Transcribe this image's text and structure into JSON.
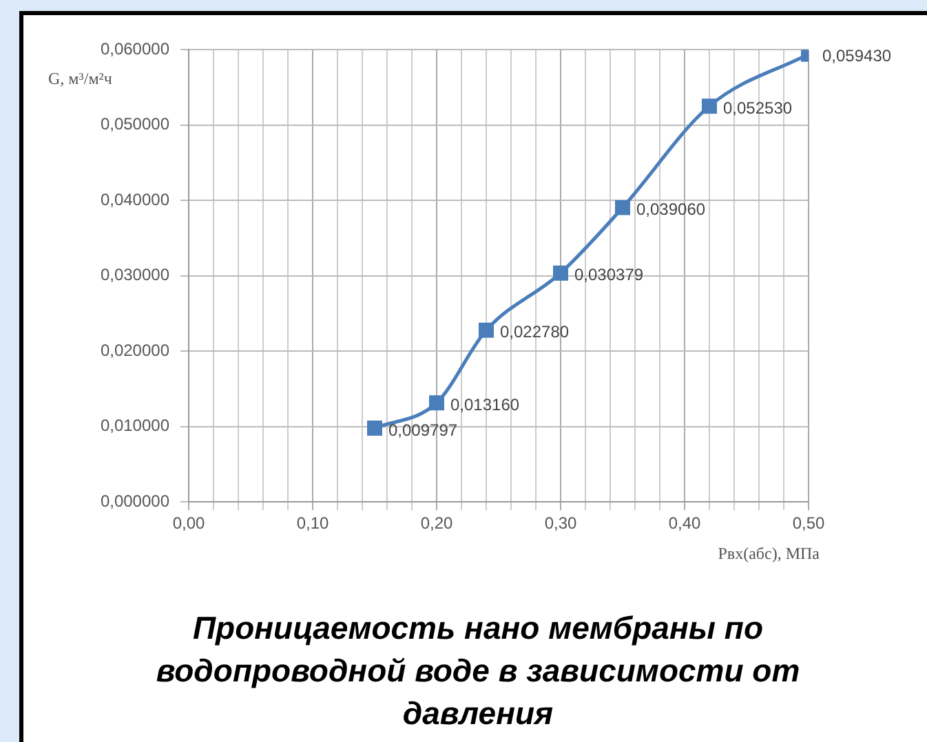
{
  "chart_data": {
    "type": "line",
    "title": "Проницаемость нано мембраны по водопроводной воде в зависимости от давления",
    "xlabel": "Pвх(абс), МПа",
    "ylabel": "G, м³/м²ч",
    "x": [
      0.15,
      0.2,
      0.24,
      0.3,
      0.35,
      0.42,
      0.5
    ],
    "series": [
      {
        "color": "#4a7ebb",
        "values": [
          0.009797,
          0.01316,
          0.02278,
          0.030379,
          0.03906,
          0.05253,
          0.05943
        ],
        "value_labels": [
          "0,009797",
          "0,013160",
          "0,022780",
          "0,030379",
          "0,039060",
          "0,052530",
          "0,059430"
        ]
      }
    ],
    "xlim": [
      0,
      0.5
    ],
    "xticks": [
      {
        "value": 0,
        "label": "0,00"
      },
      {
        "value": 0.02,
        "label": null
      },
      {
        "value": 0.04,
        "label": null
      },
      {
        "value": 0.06,
        "label": null
      },
      {
        "value": 0.08,
        "label": null
      },
      {
        "value": 0.1,
        "label": "0,10"
      },
      {
        "value": 0.12,
        "label": null
      },
      {
        "value": 0.14,
        "label": null
      },
      {
        "value": 0.16,
        "label": null
      },
      {
        "value": 0.18,
        "label": null
      },
      {
        "value": 0.2,
        "label": "0,20"
      },
      {
        "value": 0.22,
        "label": null
      },
      {
        "value": 0.24,
        "label": null
      },
      {
        "value": 0.26,
        "label": null
      },
      {
        "value": 0.28,
        "label": null
      },
      {
        "value": 0.3,
        "label": "0,30"
      },
      {
        "value": 0.32,
        "label": null
      },
      {
        "value": 0.34,
        "label": null
      },
      {
        "value": 0.36,
        "label": null
      },
      {
        "value": 0.38,
        "label": null
      },
      {
        "value": 0.4,
        "label": "0,40"
      },
      {
        "value": 0.42,
        "label": null
      },
      {
        "value": 0.44,
        "label": null
      },
      {
        "value": 0.46,
        "label": null
      },
      {
        "value": 0.48,
        "label": null
      },
      {
        "value": 0.5,
        "label": "0,50"
      }
    ],
    "ylim": [
      0,
      0.06
    ],
    "yticks": [
      {
        "value": 0,
        "label": "0,000000"
      },
      {
        "value": 0.01,
        "label": "0,010000"
      },
      {
        "value": 0.02,
        "label": "0,020000"
      },
      {
        "value": 0.03,
        "label": "0,030000"
      },
      {
        "value": 0.04,
        "label": "0,040000"
      },
      {
        "value": 0.05,
        "label": "0,050000"
      },
      {
        "value": 0.06,
        "label": "0,060000"
      }
    ],
    "grid": true,
    "legend": false,
    "marker": "square",
    "line_style": "solid"
  }
}
